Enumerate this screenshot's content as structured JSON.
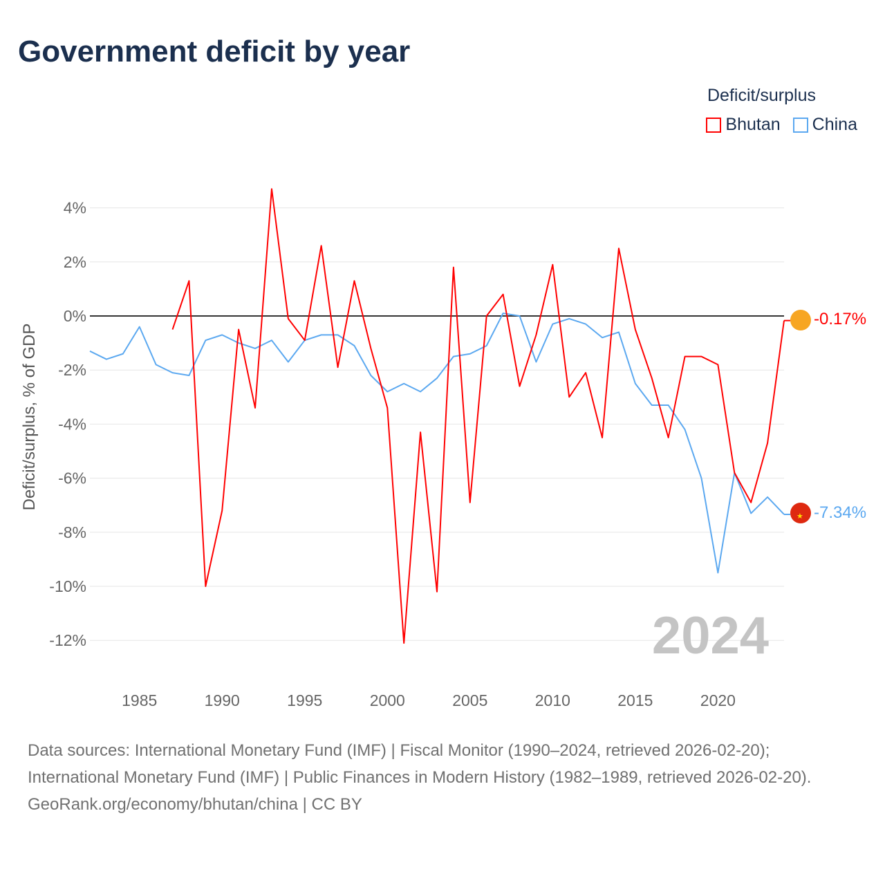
{
  "title": "Government deficit by year",
  "legend": {
    "title": "Deficit/surplus",
    "items": [
      {
        "label": "Bhutan",
        "color": "#ff0000"
      },
      {
        "label": "China",
        "color": "#5ba8f0"
      }
    ]
  },
  "year_watermark": "2024",
  "end_labels": {
    "bhutan": "-0.17%",
    "china": "-7.34%"
  },
  "footer": {
    "sources": "Data sources: International Monetary Fund (IMF) | Fiscal Monitor (1990–2024, retrieved 2026-02-20); International Monetary Fund (IMF) | Public Finances in Modern History (1982–1989, retrieved 2026-02-20).",
    "credit": "GeoRank.org/economy/bhutan/china | CC BY"
  },
  "chart_data": {
    "type": "line",
    "title": "Government deficit by year",
    "ylabel": "Deficit/surplus, % of GDP",
    "xlabel": "",
    "xlim": [
      1982,
      2024
    ],
    "ylim": [
      -12,
      4
    ],
    "xticks": [
      1985,
      1990,
      1995,
      2000,
      2005,
      2010,
      2015,
      2020
    ],
    "yticks": [
      4,
      2,
      0,
      -2,
      -4,
      -6,
      -8,
      -10,
      -12
    ],
    "ytick_labels": [
      "4%",
      "2%",
      "0%",
      "-2%",
      "-4%",
      "-6%",
      "-8%",
      "-10%",
      "-12%"
    ],
    "grid": true,
    "legend_position": "top-right",
    "series": [
      {
        "name": "Bhutan",
        "color": "#ff0000",
        "x": [
          1987,
          1988,
          1989,
          1990,
          1991,
          1992,
          1993,
          1994,
          1995,
          1996,
          1997,
          1998,
          1999,
          2000,
          2001,
          2002,
          2003,
          2004,
          2005,
          2006,
          2007,
          2008,
          2009,
          2010,
          2011,
          2012,
          2013,
          2014,
          2015,
          2016,
          2017,
          2018,
          2019,
          2020,
          2021,
          2022,
          2023,
          2024
        ],
        "values": [
          -0.5,
          1.3,
          -10.0,
          -7.2,
          -0.5,
          -3.4,
          4.7,
          -0.1,
          -0.9,
          2.6,
          -1.9,
          1.3,
          -1.2,
          -3.4,
          -12.1,
          -4.3,
          -10.2,
          1.8,
          -6.9,
          0.0,
          0.8,
          -2.6,
          -0.7,
          1.9,
          -3.0,
          -2.1,
          -4.5,
          2.5,
          -0.5,
          -2.3,
          -4.5,
          -1.5,
          -1.5,
          -1.8,
          -5.8,
          -6.9,
          -4.7,
          -0.17
        ]
      },
      {
        "name": "China",
        "color": "#5ba8f0",
        "x": [
          1982,
          1983,
          1984,
          1985,
          1986,
          1987,
          1988,
          1989,
          1990,
          1991,
          1992,
          1993,
          1994,
          1995,
          1996,
          1997,
          1998,
          1999,
          2000,
          2001,
          2002,
          2003,
          2004,
          2005,
          2006,
          2007,
          2008,
          2009,
          2010,
          2011,
          2012,
          2013,
          2014,
          2015,
          2016,
          2017,
          2018,
          2019,
          2020,
          2021,
          2022,
          2023,
          2024
        ],
        "values": [
          -1.3,
          -1.6,
          -1.4,
          -0.4,
          -1.8,
          -2.1,
          -2.2,
          -0.9,
          -0.7,
          -1.0,
          -1.2,
          -0.9,
          -1.7,
          -0.9,
          -0.7,
          -0.7,
          -1.1,
          -2.2,
          -2.8,
          -2.5,
          -2.8,
          -2.3,
          -1.5,
          -1.4,
          -1.1,
          0.1,
          0.0,
          -1.7,
          -0.3,
          -0.1,
          -0.3,
          -0.8,
          -0.6,
          -2.5,
          -3.3,
          -3.3,
          -4.2,
          -6.0,
          -9.5,
          -5.8,
          -7.3,
          -6.7,
          -7.34
        ]
      }
    ]
  }
}
